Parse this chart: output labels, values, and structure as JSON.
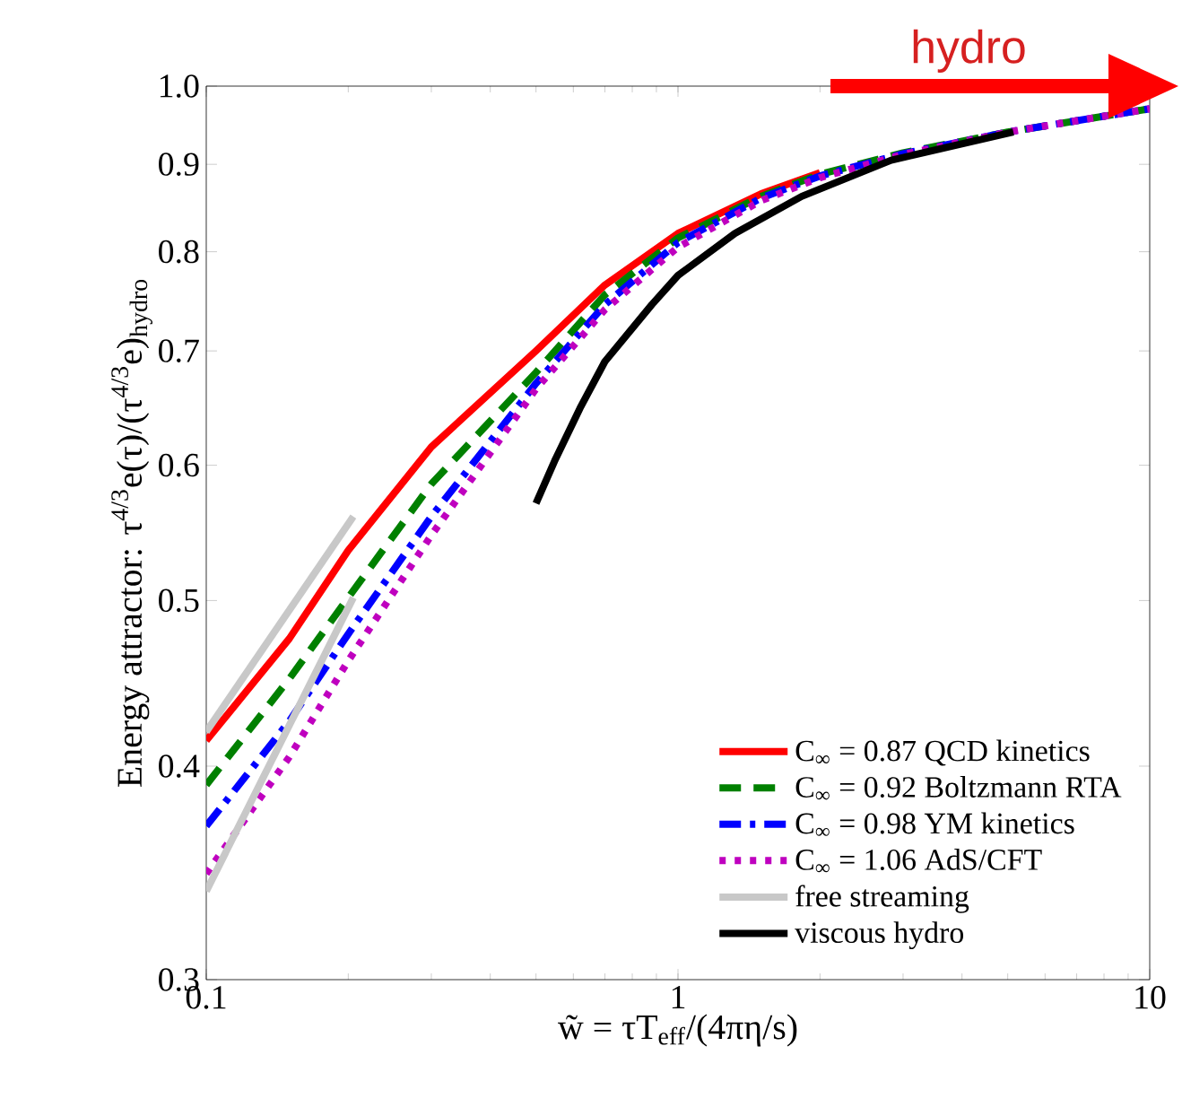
{
  "chart_data": {
    "type": "line",
    "xlabel": "w̃ = τT$_{eff}$/(4πη/s)",
    "ylabel": "Energy attractor: τ$^{4/3}$e(τ)/(τ$^{4/3}$e)$_{hydro}$",
    "log": "xy",
    "xlim": [
      0.1,
      10
    ],
    "ylim": [
      0.3,
      1.0
    ],
    "xticks": [
      0.1,
      1,
      10
    ],
    "yticks": [
      0.3,
      0.4,
      0.5,
      0.6,
      0.7,
      0.8,
      0.9,
      {
        "value": 1.0,
        "label": "1.0"
      }
    ],
    "grid": false,
    "legend": "bottom right",
    "annotations": [
      "hydro"
    ],
    "series": [
      {
        "name": "C$_{∞}$ = 0.87 QCD kinetics",
        "color": "#ff0000",
        "line_style": "solid",
        "x": [
          0.1,
          0.15,
          0.2,
          0.3,
          0.5,
          0.7,
          1,
          1.5,
          2
        ],
        "values": [
          0.414,
          0.475,
          0.535,
          0.615,
          0.7,
          0.765,
          0.82,
          0.865,
          0.89
        ]
      },
      {
        "name": "C$_{∞}$ = 0.92 Boltzmann RTA",
        "color": "#008000",
        "line_style": "dashed",
        "x": [
          0.1,
          0.15,
          0.2,
          0.3,
          0.5,
          0.7,
          1,
          1.5,
          2,
          3,
          5,
          10
        ],
        "values": [
          0.39,
          0.45,
          0.502,
          0.585,
          0.68,
          0.755,
          0.815,
          0.862,
          0.888,
          0.914,
          0.94,
          0.97
        ]
      },
      {
        "name": "C$_{∞}$ = 0.98 YM kinetics",
        "color": "#0000ff",
        "line_style": "dashdot",
        "x": [
          0.1,
          0.15,
          0.2,
          0.3,
          0.5,
          0.7,
          1,
          1.5,
          2,
          3,
          5,
          10
        ],
        "values": [
          0.369,
          0.425,
          0.478,
          0.56,
          0.67,
          0.745,
          0.81,
          0.86,
          0.886,
          0.913,
          0.94,
          0.97
        ]
      },
      {
        "name": "C$_{∞}$ = 1.06 AdS/CFT",
        "color": "#bf00bf",
        "line_style": "dotted",
        "x": [
          0.1,
          0.15,
          0.2,
          0.3,
          0.5,
          0.7,
          1,
          1.5,
          2,
          3,
          5,
          10
        ],
        "values": [
          0.346,
          0.405,
          0.461,
          0.546,
          0.665,
          0.74,
          0.805,
          0.857,
          0.884,
          0.912,
          0.94,
          0.97
        ]
      },
      {
        "name": "free streaming",
        "color": "#c8c8c8",
        "line_style": "solid",
        "x": [
          0.1,
          0.205
        ],
        "values": [
          0.419,
          0.56
        ]
      },
      {
        "color": "#c8c8c8",
        "line_style": "solid",
        "x": [
          0.1,
          0.205
        ],
        "values": [
          0.338,
          0.502
        ]
      },
      {
        "name": "viscous hydro",
        "color": "#000000",
        "line_style": "solid",
        "x": [
          0.5,
          0.55,
          0.62,
          0.7,
          0.88,
          1,
          1.32,
          1.83,
          2.83,
          5.14
        ],
        "values": [
          0.57,
          0.605,
          0.648,
          0.69,
          0.745,
          0.775,
          0.82,
          0.862,
          0.905,
          0.94
        ]
      }
    ]
  }
}
